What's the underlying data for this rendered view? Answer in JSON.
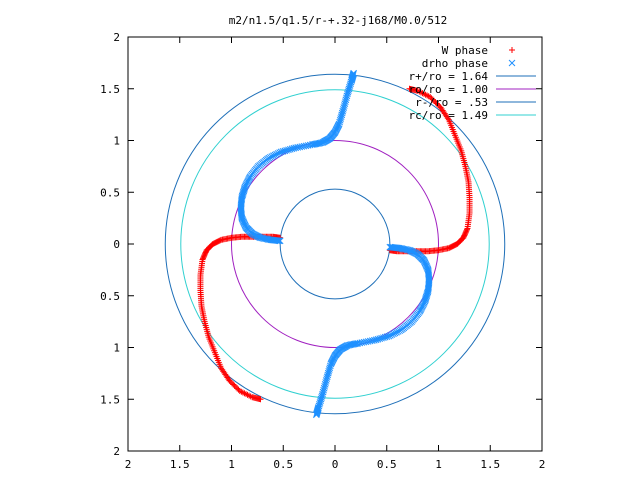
{
  "chart_data": {
    "type": "scatter",
    "title": "m2/n1.5/q1.5/r-+.32-j168/M0.0/512",
    "xlabel": "",
    "ylabel": "",
    "xlim": [
      -2,
      2
    ],
    "ylim": [
      -2,
      2
    ],
    "x_ticks": [
      "2",
      "1.5",
      "1",
      "0.5",
      "0",
      "0.5",
      "1",
      "1.5",
      "2"
    ],
    "y_ticks": [
      "2",
      "1.5",
      "1",
      "0.5",
      "0",
      "0.5",
      "1",
      "1.5",
      "2"
    ],
    "grid": false,
    "legend_position": "top-right",
    "circles": [
      {
        "name": "r+/ro = 1.64",
        "radius": 1.64,
        "color": "#1e6fb8"
      },
      {
        "name": "ro/ro = 1.00",
        "radius": 1.0,
        "color": "#a020c0"
      },
      {
        "name": "r-/ro = .53",
        "radius": 0.53,
        "color": "#1e6fb8"
      },
      {
        "name": "rc/ro = 1.49",
        "radius": 1.49,
        "color": "#30d0d0"
      }
    ],
    "series": [
      {
        "name": "W phase",
        "marker": "+",
        "color": "#ff0000",
        "points": [
          [
            -0.53,
            0.06
          ],
          [
            -0.6,
            0.07
          ],
          [
            -0.7,
            0.07
          ],
          [
            -0.8,
            0.07
          ],
          [
            -0.9,
            0.07
          ],
          [
            -1.0,
            0.06
          ],
          [
            -1.1,
            0.04
          ],
          [
            -1.18,
            0.0
          ],
          [
            -1.24,
            -0.06
          ],
          [
            -1.28,
            -0.15
          ],
          [
            -1.3,
            -0.3
          ],
          [
            -1.3,
            -0.45
          ],
          [
            -1.29,
            -0.6
          ],
          [
            -1.26,
            -0.75
          ],
          [
            -1.22,
            -0.9
          ],
          [
            -1.16,
            -1.05
          ],
          [
            -1.1,
            -1.2
          ],
          [
            -1.02,
            -1.32
          ],
          [
            -0.92,
            -1.42
          ],
          [
            -0.8,
            -1.48
          ],
          [
            -0.72,
            -1.5
          ],
          [
            0.53,
            -0.06
          ],
          [
            0.6,
            -0.07
          ],
          [
            0.7,
            -0.07
          ],
          [
            0.8,
            -0.07
          ],
          [
            0.9,
            -0.07
          ],
          [
            1.0,
            -0.06
          ],
          [
            1.1,
            -0.04
          ],
          [
            1.18,
            0.0
          ],
          [
            1.24,
            0.06
          ],
          [
            1.28,
            0.15
          ],
          [
            1.3,
            0.3
          ],
          [
            1.3,
            0.45
          ],
          [
            1.29,
            0.6
          ],
          [
            1.26,
            0.75
          ],
          [
            1.22,
            0.9
          ],
          [
            1.16,
            1.05
          ],
          [
            1.1,
            1.2
          ],
          [
            1.02,
            1.32
          ],
          [
            0.92,
            1.42
          ],
          [
            0.8,
            1.48
          ],
          [
            0.72,
            1.5
          ]
        ]
      },
      {
        "name": "drho phase",
        "marker": "x",
        "color": "#1e90ff",
        "points": [
          [
            -0.53,
            0.03
          ],
          [
            -0.62,
            0.04
          ],
          [
            -0.72,
            0.06
          ],
          [
            -0.8,
            0.1
          ],
          [
            -0.86,
            0.16
          ],
          [
            -0.9,
            0.25
          ],
          [
            -0.91,
            0.35
          ],
          [
            -0.9,
            0.45
          ],
          [
            -0.87,
            0.55
          ],
          [
            -0.82,
            0.65
          ],
          [
            -0.74,
            0.75
          ],
          [
            -0.64,
            0.83
          ],
          [
            -0.52,
            0.89
          ],
          [
            -0.38,
            0.93
          ],
          [
            -0.22,
            0.96
          ],
          [
            -0.12,
            0.98
          ],
          [
            -0.05,
            1.02
          ],
          [
            0.0,
            1.08
          ],
          [
            0.04,
            1.16
          ],
          [
            0.08,
            1.3
          ],
          [
            0.12,
            1.45
          ],
          [
            0.16,
            1.58
          ],
          [
            0.18,
            1.65
          ],
          [
            0.53,
            -0.03
          ],
          [
            0.62,
            -0.04
          ],
          [
            0.72,
            -0.06
          ],
          [
            0.8,
            -0.1
          ],
          [
            0.86,
            -0.16
          ],
          [
            0.9,
            -0.25
          ],
          [
            0.91,
            -0.35
          ],
          [
            0.9,
            -0.45
          ],
          [
            0.87,
            -0.55
          ],
          [
            0.82,
            -0.65
          ],
          [
            0.74,
            -0.75
          ],
          [
            0.64,
            -0.83
          ],
          [
            0.52,
            -0.89
          ],
          [
            0.38,
            -0.93
          ],
          [
            0.22,
            -0.96
          ],
          [
            0.12,
            -0.98
          ],
          [
            0.05,
            -1.02
          ],
          [
            0.0,
            -1.08
          ],
          [
            -0.04,
            -1.16
          ],
          [
            -0.08,
            -1.3
          ],
          [
            -0.12,
            -1.45
          ],
          [
            -0.16,
            -1.58
          ],
          [
            -0.18,
            -1.65
          ]
        ]
      }
    ]
  }
}
